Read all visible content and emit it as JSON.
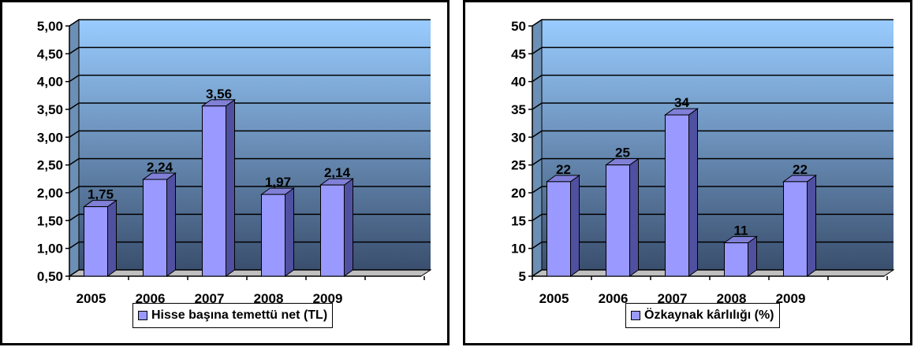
{
  "chart_data": [
    {
      "type": "bar",
      "categories": [
        "2005",
        "2006",
        "2007",
        "2008",
        "2009"
      ],
      "series": [
        {
          "name": "Hisse başına temettü net (TL)",
          "values": [
            1.75,
            2.24,
            3.56,
            1.97,
            2.14
          ],
          "labels": [
            "1,75",
            "2,24",
            "3,56",
            "1,97",
            "2,14"
          ]
        }
      ],
      "title": "",
      "xlabel": "",
      "ylabel": "",
      "ylim": [
        0.5,
        5.0
      ],
      "yticks": [
        "0,50",
        "1,00",
        "1,50",
        "2,00",
        "2,50",
        "3,00",
        "3,50",
        "4,00",
        "4,50",
        "5,00"
      ],
      "grid": true,
      "legend": "bottom",
      "style": "3d-bar",
      "colors": {
        "bar": "#9999ff",
        "bar_side": "#5050a0",
        "plot_top": "#99ccff",
        "plot_bottom": "#3a4f6e"
      }
    },
    {
      "type": "bar",
      "categories": [
        "2005",
        "2006",
        "2007",
        "2008",
        "2009"
      ],
      "series": [
        {
          "name": "Özkaynak kârlılığı (%)",
          "values": [
            22,
            25,
            34,
            11,
            22
          ],
          "labels": [
            "22",
            "25",
            "34",
            "11",
            "22"
          ]
        }
      ],
      "title": "",
      "xlabel": "",
      "ylabel": "",
      "ylim": [
        5,
        50
      ],
      "yticks": [
        "5",
        "10",
        "15",
        "20",
        "25",
        "30",
        "35",
        "40",
        "45",
        "50"
      ],
      "grid": true,
      "legend": "bottom",
      "style": "3d-bar",
      "colors": {
        "bar": "#9999ff",
        "bar_side": "#5050a0",
        "plot_top": "#99ccff",
        "plot_bottom": "#3a4f6e"
      }
    }
  ]
}
